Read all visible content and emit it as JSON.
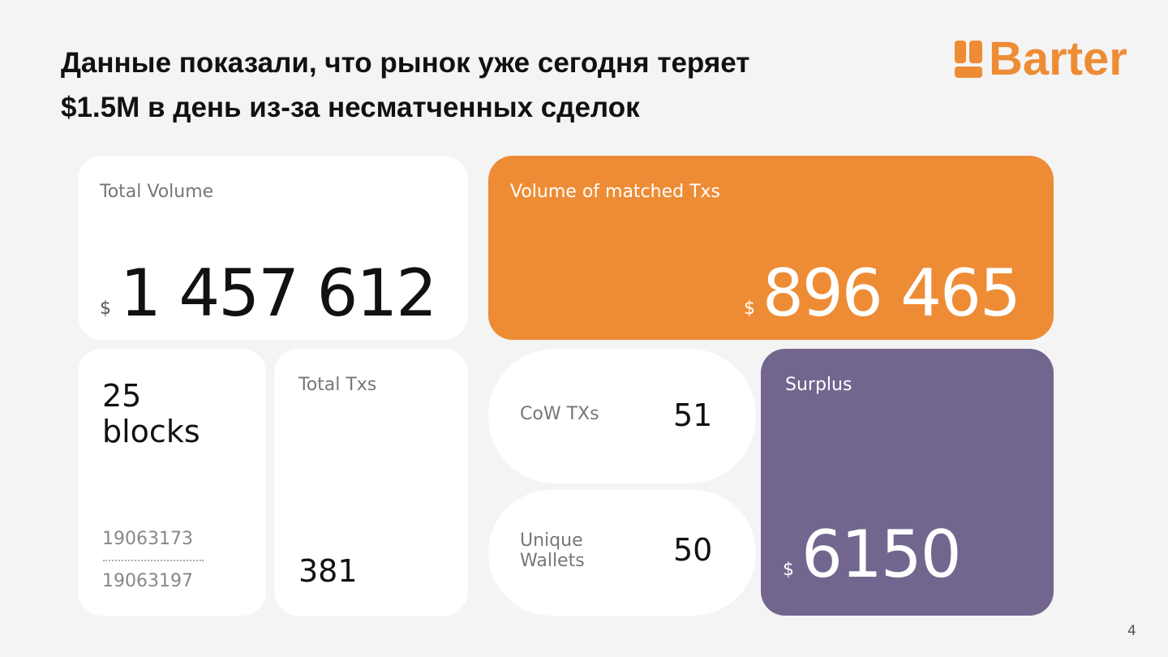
{
  "header": {
    "title_lines": [
      "Данные показали, что рынок уже сегодня теряет",
      "$1.5M в день из-за несматченных сделок"
    ],
    "logo": "Barter"
  },
  "cards": {
    "total_volume": {
      "label": "Total Volume",
      "currency": "$",
      "value": "1 457 612"
    },
    "matched_volume": {
      "label": "Volume of matched Txs",
      "currency": "$",
      "value": "896 465"
    },
    "blocks": {
      "count": "25",
      "unit": "blocks",
      "from": "19063173",
      "to": "19063197"
    },
    "total_txs": {
      "label": "Total Txs",
      "value": "381"
    },
    "cow_txs": {
      "label": "CoW TXs",
      "value": "51"
    },
    "unique_wallets": {
      "label": "Unique Wallets",
      "value": "50"
    },
    "surplus": {
      "label": "Surplus",
      "currency": "$",
      "value": "6150"
    }
  },
  "footer": {
    "page": "4"
  }
}
